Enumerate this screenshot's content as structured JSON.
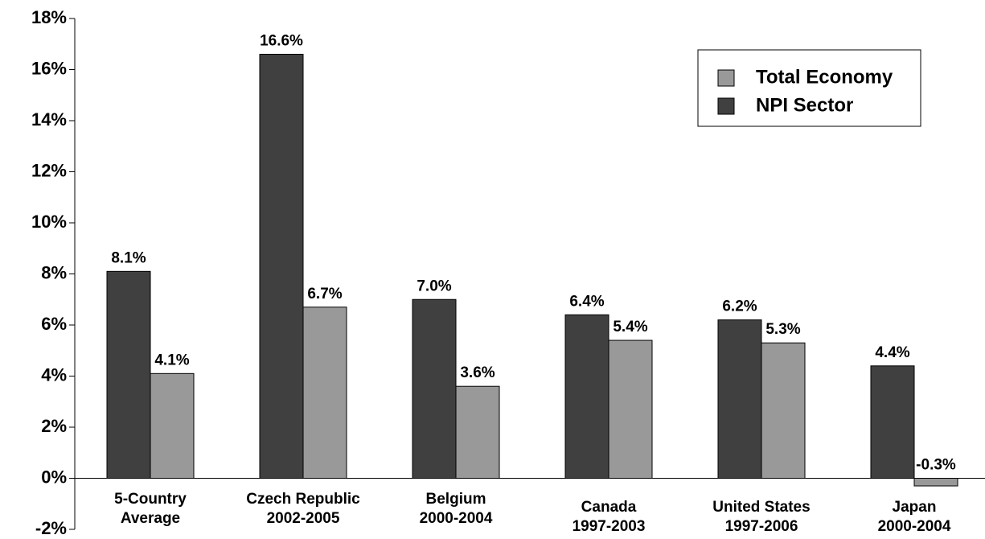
{
  "chart_data": {
    "type": "bar",
    "categories": [
      [
        "5-Country",
        "Average"
      ],
      [
        "Czech Republic",
        "2002-2005"
      ],
      [
        "Belgium",
        "2000-2004"
      ],
      [
        "Canada",
        "1997-2003"
      ],
      [
        "United States",
        "1997-2006"
      ],
      [
        "Japan",
        "2000-2004"
      ]
    ],
    "series": [
      {
        "name": "NPI Sector",
        "color": "#404040",
        "values": [
          8.1,
          16.6,
          7.0,
          6.4,
          6.2,
          4.4
        ],
        "value_labels": [
          "8.1%",
          "16.6%",
          "7.0%",
          "6.4%",
          "6.2%",
          "4.4%"
        ]
      },
      {
        "name": "Total Economy",
        "color": "#999999",
        "values": [
          4.1,
          6.7,
          3.6,
          5.4,
          5.3,
          -0.3
        ],
        "value_labels": [
          "4.1%",
          "6.7%",
          "3.6%",
          "5.4%",
          "5.3%",
          "-0.3%"
        ]
      }
    ],
    "ylim": [
      -2,
      18
    ],
    "yticks": [
      {
        "value": -2,
        "label": "-2%"
      },
      {
        "value": 0,
        "label": "0%"
      },
      {
        "value": 2,
        "label": "2%"
      },
      {
        "value": 4,
        "label": "4%"
      },
      {
        "value": 6,
        "label": "6%"
      },
      {
        "value": 8,
        "label": "8%"
      },
      {
        "value": 10,
        "label": "10%"
      },
      {
        "value": 12,
        "label": "12%"
      },
      {
        "value": 14,
        "label": "14%"
      },
      {
        "value": 16,
        "label": "16%"
      },
      {
        "value": 18,
        "label": "18%"
      }
    ],
    "legend": "upper right"
  }
}
